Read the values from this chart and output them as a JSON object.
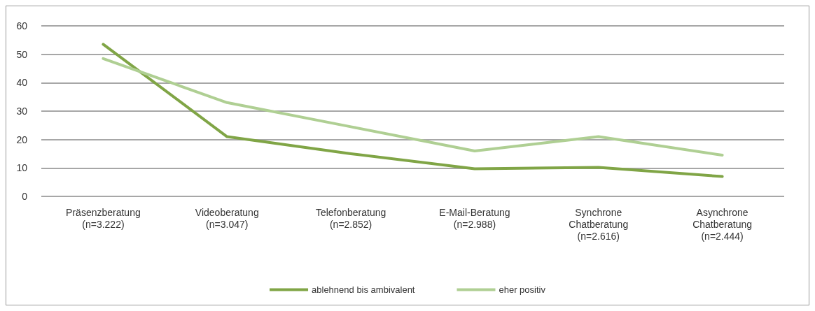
{
  "chart_data": {
    "type": "line",
    "categories": [
      "Präsenzberatung\n(n=3.222)",
      "Videoberatung\n(n=3.047)",
      "Telefonberatung\n(n=2.852)",
      "E-Mail-Beratung\n(n=2.988)",
      "Synchrone\nChatberatung\n(n=2.616)",
      "Asynchrone\nChatberatung\n(n=2.444)"
    ],
    "series": [
      {
        "name": "ablehnend bis ambivalent",
        "color": "#80a546",
        "values": [
          53.5,
          21,
          15,
          9.7,
          10.2,
          7
        ]
      },
      {
        "name": "eher positiv",
        "color": "#afcf93",
        "values": [
          48.5,
          33,
          24.5,
          16,
          21,
          14.5
        ]
      }
    ],
    "ylim": [
      0,
      60
    ],
    "yticks": [
      0,
      10,
      20,
      30,
      40,
      50,
      60
    ],
    "grid": "y",
    "legend": "bottom",
    "marker": "none",
    "line_style": "solid"
  }
}
